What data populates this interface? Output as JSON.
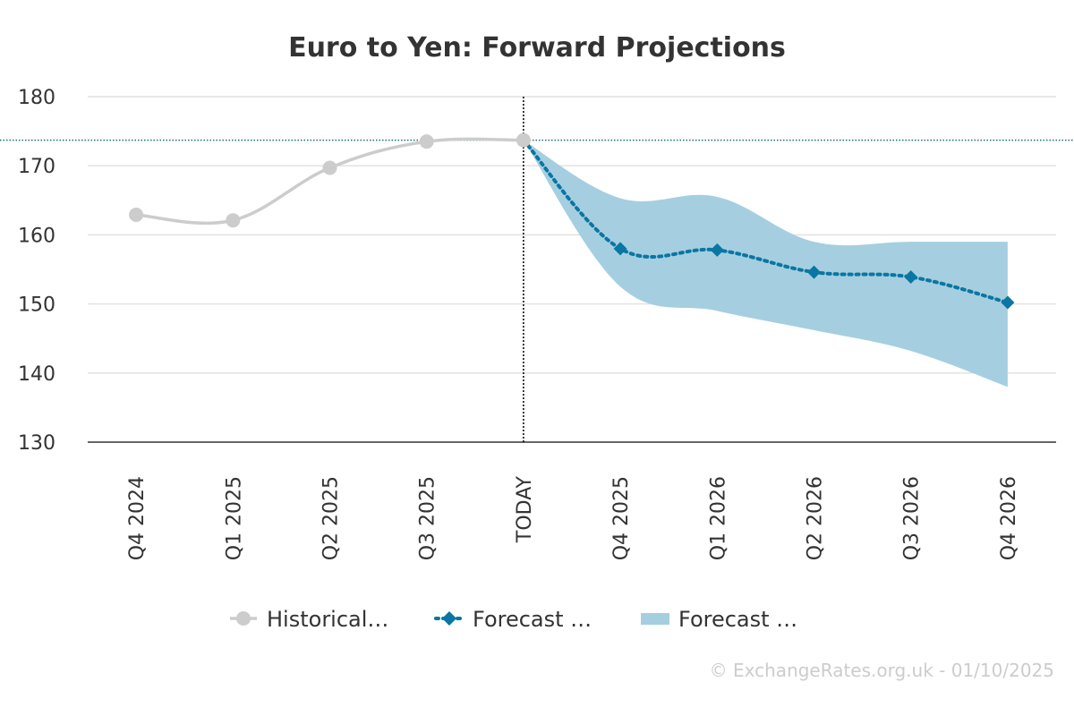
{
  "chart_data": {
    "type": "line",
    "title": "Euro to Yen: Forward Projections",
    "credit": "© ExchangeRates.org.uk - 01/10/2025",
    "categories": [
      "Q4 2024",
      "Q1 2025",
      "Q2 2025",
      "Q3 2025",
      "TODAY",
      "Q4 2025",
      "Q1 2026",
      "Q2 2026",
      "Q3 2026",
      "Q4 2026"
    ],
    "ylim": [
      130,
      180
    ],
    "yticks": [
      130,
      140,
      150,
      160,
      170,
      180
    ],
    "grid": true,
    "today_value": 173.7,
    "series": [
      {
        "name": "Historical…",
        "type": "line",
        "color": "#cccccc",
        "values": [
          162.9,
          162.1,
          169.7,
          173.5,
          173.7,
          null,
          null,
          null,
          null,
          null
        ]
      },
      {
        "name": "Forecast …",
        "type": "line",
        "color": "#0a76a3",
        "values": [
          null,
          null,
          null,
          null,
          173.7,
          158.0,
          157.8,
          154.6,
          153.9,
          150.2
        ]
      },
      {
        "name": "Forecast …",
        "type": "area",
        "color": "#a5cfe0",
        "low": [
          null,
          null,
          null,
          null,
          173.7,
          152.5,
          149.0,
          146.2,
          143.2,
          138.0
        ],
        "high": [
          null,
          null,
          null,
          null,
          173.7,
          165.3,
          165.5,
          159.0,
          159.0,
          159.0
        ]
      }
    ],
    "legend": {
      "position": "bottom"
    },
    "colors": {
      "grid": "#e0e0e0",
      "axis": "#333333",
      "today_line": "#000000",
      "today_ref": "#1b6e7a"
    }
  }
}
